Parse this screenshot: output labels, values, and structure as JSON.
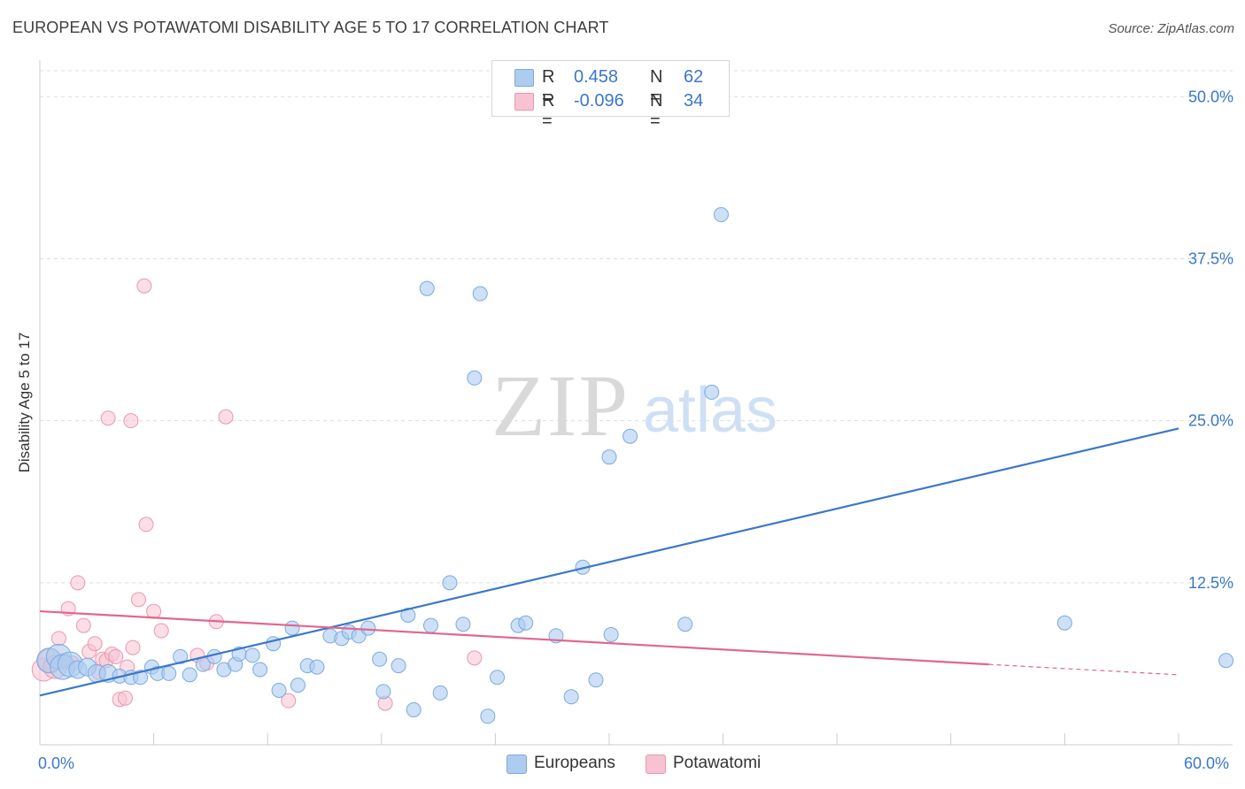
{
  "title": "EUROPEAN VS POTAWATOMI DISABILITY AGE 5 TO 17 CORRELATION CHART",
  "source": "Source: ZipAtlas.com",
  "watermark": {
    "zip": "ZIP",
    "atlas": "atlas"
  },
  "legend": {
    "rows": [
      {
        "r_label": "R =",
        "r_value": "0.458",
        "n_label": "N =",
        "n_value": "62"
      },
      {
        "r_label": "R =",
        "r_value": "-0.096",
        "n_label": "N =",
        "n_value": "34"
      }
    ]
  },
  "bottom_legend": {
    "europeans": "Europeans",
    "potawatomi": "Potawatomi"
  },
  "x_ticks": {
    "min": "0.0%",
    "max": "60.0%"
  },
  "colors": {
    "european_fill": "#aecbf0",
    "european_stroke": "#7aaae0",
    "european_line": "#3a78c9",
    "potawatomi_fill": "#f7c2d2",
    "potawatomi_stroke": "#eb97b2",
    "potawatomi_line": "#e2668f",
    "grid": "#dddddd",
    "tick_text": "#3a78c9"
  },
  "chart_data": {
    "type": "scatter",
    "title": "EUROPEAN VS POTAWATOMI DISABILITY AGE 5 TO 17 CORRELATION CHART",
    "xlabel": "",
    "ylabel": "Disability Age 5 to 17",
    "xlim": [
      0,
      60
    ],
    "ylim": [
      0,
      52
    ],
    "y_ticks": [
      12.5,
      25.0,
      37.5,
      50.0
    ],
    "y_tick_labels": [
      "12.5%",
      "25.0%",
      "37.5%",
      "50.0%"
    ],
    "legend_position": "top-center",
    "series": [
      {
        "name": "Europeans",
        "R": 0.458,
        "N": 62,
        "trend": {
          "x": [
            0,
            60
          ],
          "y": [
            3.8,
            24.4
          ]
        },
        "points": [
          [
            0.5,
            6.5
          ],
          [
            1.0,
            6.8
          ],
          [
            1.2,
            6.0
          ],
          [
            1.6,
            6.2
          ],
          [
            2.0,
            5.8
          ],
          [
            2.5,
            6.0
          ],
          [
            3.0,
            5.5
          ],
          [
            3.6,
            5.5
          ],
          [
            4.2,
            5.3
          ],
          [
            4.8,
            5.2
          ],
          [
            5.3,
            5.2
          ],
          [
            5.9,
            6.0
          ],
          [
            6.2,
            5.5
          ],
          [
            6.8,
            5.5
          ],
          [
            7.4,
            6.8
          ],
          [
            7.9,
            5.4
          ],
          [
            8.6,
            6.2
          ],
          [
            9.2,
            6.8
          ],
          [
            9.7,
            5.8
          ],
          [
            10.3,
            6.2
          ],
          [
            10.5,
            7.0
          ],
          [
            11.2,
            6.9
          ],
          [
            11.6,
            5.8
          ],
          [
            12.3,
            7.8
          ],
          [
            12.6,
            4.2
          ],
          [
            13.3,
            9.0
          ],
          [
            13.6,
            4.6
          ],
          [
            14.1,
            6.1
          ],
          [
            14.6,
            6.0
          ],
          [
            15.3,
            8.4
          ],
          [
            15.9,
            8.2
          ],
          [
            16.3,
            8.7
          ],
          [
            16.8,
            8.4
          ],
          [
            17.3,
            9.0
          ],
          [
            17.9,
            6.6
          ],
          [
            18.1,
            4.1
          ],
          [
            18.9,
            6.1
          ],
          [
            19.4,
            10.0
          ],
          [
            19.7,
            2.7
          ],
          [
            20.4,
            35.2
          ],
          [
            20.6,
            9.2
          ],
          [
            21.1,
            4.0
          ],
          [
            21.6,
            12.5
          ],
          [
            22.3,
            9.3
          ],
          [
            22.9,
            28.3
          ],
          [
            23.2,
            34.8
          ],
          [
            23.6,
            2.2
          ],
          [
            24.1,
            5.2
          ],
          [
            25.2,
            9.2
          ],
          [
            25.6,
            9.4
          ],
          [
            27.2,
            8.4
          ],
          [
            28.0,
            3.7
          ],
          [
            28.6,
            13.7
          ],
          [
            29.3,
            5.0
          ],
          [
            30.0,
            22.2
          ],
          [
            30.1,
            8.5
          ],
          [
            31.1,
            23.8
          ],
          [
            34.0,
            9.3
          ],
          [
            35.4,
            27.2
          ],
          [
            35.9,
            40.9
          ],
          [
            54.0,
            9.4
          ],
          [
            62.5,
            6.5
          ]
        ]
      },
      {
        "name": "Potawatomi",
        "R": -0.096,
        "N": 34,
        "trend": {
          "x": [
            0,
            50
          ],
          "y": [
            10.3,
            6.2
          ]
        },
        "trend_dashed": {
          "x": [
            50,
            60
          ],
          "y": [
            6.2,
            5.4
          ]
        },
        "points": [
          [
            0.2,
            5.8
          ],
          [
            0.5,
            6.5
          ],
          [
            0.8,
            6.0
          ],
          [
            1.0,
            8.2
          ],
          [
            1.3,
            6.5
          ],
          [
            1.5,
            10.5
          ],
          [
            1.7,
            6.3
          ],
          [
            2.0,
            12.5
          ],
          [
            2.3,
            9.2
          ],
          [
            2.6,
            7.2
          ],
          [
            2.9,
            7.8
          ],
          [
            3.1,
            5.6
          ],
          [
            3.3,
            6.6
          ],
          [
            3.5,
            6.5
          ],
          [
            3.6,
            25.2
          ],
          [
            3.8,
            7.0
          ],
          [
            4.0,
            6.8
          ],
          [
            4.2,
            3.5
          ],
          [
            4.5,
            3.6
          ],
          [
            4.6,
            6.0
          ],
          [
            4.8,
            25.0
          ],
          [
            4.9,
            7.5
          ],
          [
            5.2,
            11.2
          ],
          [
            5.5,
            35.4
          ],
          [
            5.6,
            17.0
          ],
          [
            6.0,
            10.3
          ],
          [
            6.4,
            8.8
          ],
          [
            8.3,
            6.9
          ],
          [
            8.8,
            6.3
          ],
          [
            9.3,
            9.5
          ],
          [
            9.8,
            25.3
          ],
          [
            13.1,
            3.4
          ],
          [
            18.2,
            3.2
          ],
          [
            22.9,
            6.7
          ]
        ]
      }
    ]
  }
}
